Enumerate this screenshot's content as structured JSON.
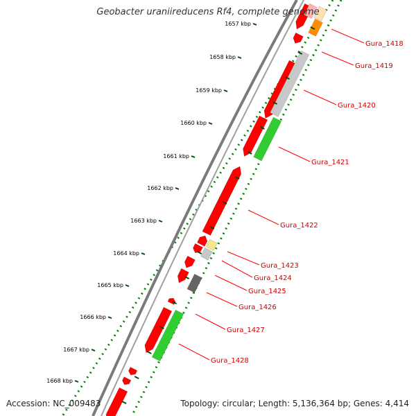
{
  "title": "Geobacter uraniireducens Rf4, complete genome",
  "footer": {
    "accession": "Accession: NC_009483",
    "summary": "Topology: circular; Length: 5,136,364 bp; Genes: 4,414"
  },
  "colors": {
    "backbone": "#808080",
    "tick_dots": "#008000",
    "ruler_tick": "#004d00",
    "gene_label": "#cc0000",
    "leader": "#ff0000",
    "ruler_label": "#000000",
    "cds_red": "#ff0000",
    "orange": "#ff8c00",
    "light_gray": "#c8c8c8",
    "green": "#32cd32",
    "dark_gray": "#646464",
    "pale_yellow": "#f5e68c",
    "pale_pink": "#ffb4b4",
    "pale_orange": "#ffe0b0"
  },
  "ruler_labels": [
    "1657 kbp",
    "1658 kbp",
    "1659 kbp",
    "1660 kbp",
    "1661 kbp",
    "1662 kbp",
    "1663 kbp",
    "1664 kbp",
    "1665 kbp",
    "1666 kbp",
    "1667 kbp",
    "1668 kbp"
  ],
  "gene_labels": [
    "Gura_1418",
    "Gura_1419",
    "Gura_1420",
    "Gura_1421",
    "Gura_1422",
    "Gura_1423",
    "Gura_1424",
    "Gura_1425",
    "Gura_1426",
    "Gura_1427",
    "Gura_1428"
  ]
}
